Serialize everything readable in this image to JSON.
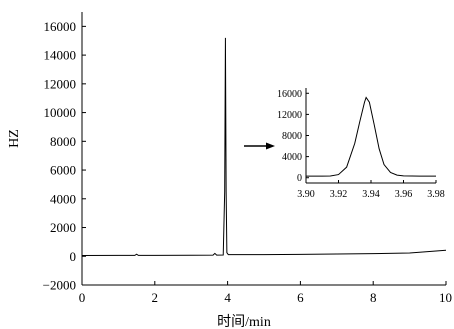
{
  "chart_data": [
    {
      "type": "line",
      "xlabel": "时间/min",
      "ylabel": "HZ",
      "xlim": [
        0,
        10
      ],
      "ylim": [
        -2000,
        17000
      ],
      "x_ticks": [
        0,
        2,
        4,
        6,
        8,
        10
      ],
      "x_tick_labels": [
        "0",
        "2",
        "4",
        "6",
        "8",
        "10"
      ],
      "y_ticks": [
        -2000,
        0,
        2000,
        4000,
        6000,
        8000,
        10000,
        12000,
        14000,
        16000
      ],
      "y_tick_labels": [
        "−2000",
        "0",
        "2000",
        "4000",
        "6000",
        "8000",
        "10000",
        "12000",
        "14000",
        "16000"
      ],
      "grid": false,
      "series": [
        {
          "points": [
            [
              0,
              50
            ],
            [
              1.0,
              60
            ],
            [
              1.45,
              60
            ],
            [
              1.5,
              140
            ],
            [
              1.55,
              60
            ],
            [
              2.0,
              65
            ],
            [
              3.0,
              70
            ],
            [
              3.6,
              80
            ],
            [
              3.65,
              200
            ],
            [
              3.7,
              80
            ],
            [
              3.88,
              90
            ],
            [
              3.92,
              4500
            ],
            [
              3.94,
              15200
            ],
            [
              3.96,
              4500
            ],
            [
              3.98,
              250
            ],
            [
              4.02,
              110
            ],
            [
              5.0,
              110
            ],
            [
              6.0,
              130
            ],
            [
              7.0,
              160
            ],
            [
              8.0,
              180
            ],
            [
              9.0,
              230
            ],
            [
              9.5,
              320
            ],
            [
              10.0,
              420
            ]
          ]
        }
      ]
    },
    {
      "type": "line",
      "role": "inset",
      "xlim": [
        3.9,
        3.98
      ],
      "ylim": [
        -1000,
        17000
      ],
      "x_ticks": [
        3.9,
        3.92,
        3.94,
        3.96,
        3.98
      ],
      "x_tick_labels": [
        "3.90",
        "3.92",
        "3.94",
        "3.96",
        "3.98"
      ],
      "y_ticks": [
        0,
        4000,
        8000,
        12000,
        16000
      ],
      "y_tick_labels": [
        "0",
        "4000",
        "8000",
        "12000",
        "16000"
      ],
      "peak": {
        "x": 3.937,
        "y": 15200
      },
      "baseline": 300,
      "series": [
        {
          "points": [
            [
              3.9,
              300
            ],
            [
              3.91,
              300
            ],
            [
              3.915,
              320
            ],
            [
              3.92,
              600
            ],
            [
              3.925,
              2000
            ],
            [
              3.93,
              6500
            ],
            [
              3.933,
              10500
            ],
            [
              3.936,
              14300
            ],
            [
              3.937,
              15200
            ],
            [
              3.939,
              14300
            ],
            [
              3.942,
              10000
            ],
            [
              3.945,
              5500
            ],
            [
              3.948,
              2500
            ],
            [
              3.952,
              1000
            ],
            [
              3.956,
              500
            ],
            [
              3.96,
              350
            ],
            [
              3.97,
              300
            ],
            [
              3.98,
              300
            ]
          ]
        }
      ]
    }
  ],
  "arrow": {
    "from": "main-peak",
    "to": "inset"
  }
}
